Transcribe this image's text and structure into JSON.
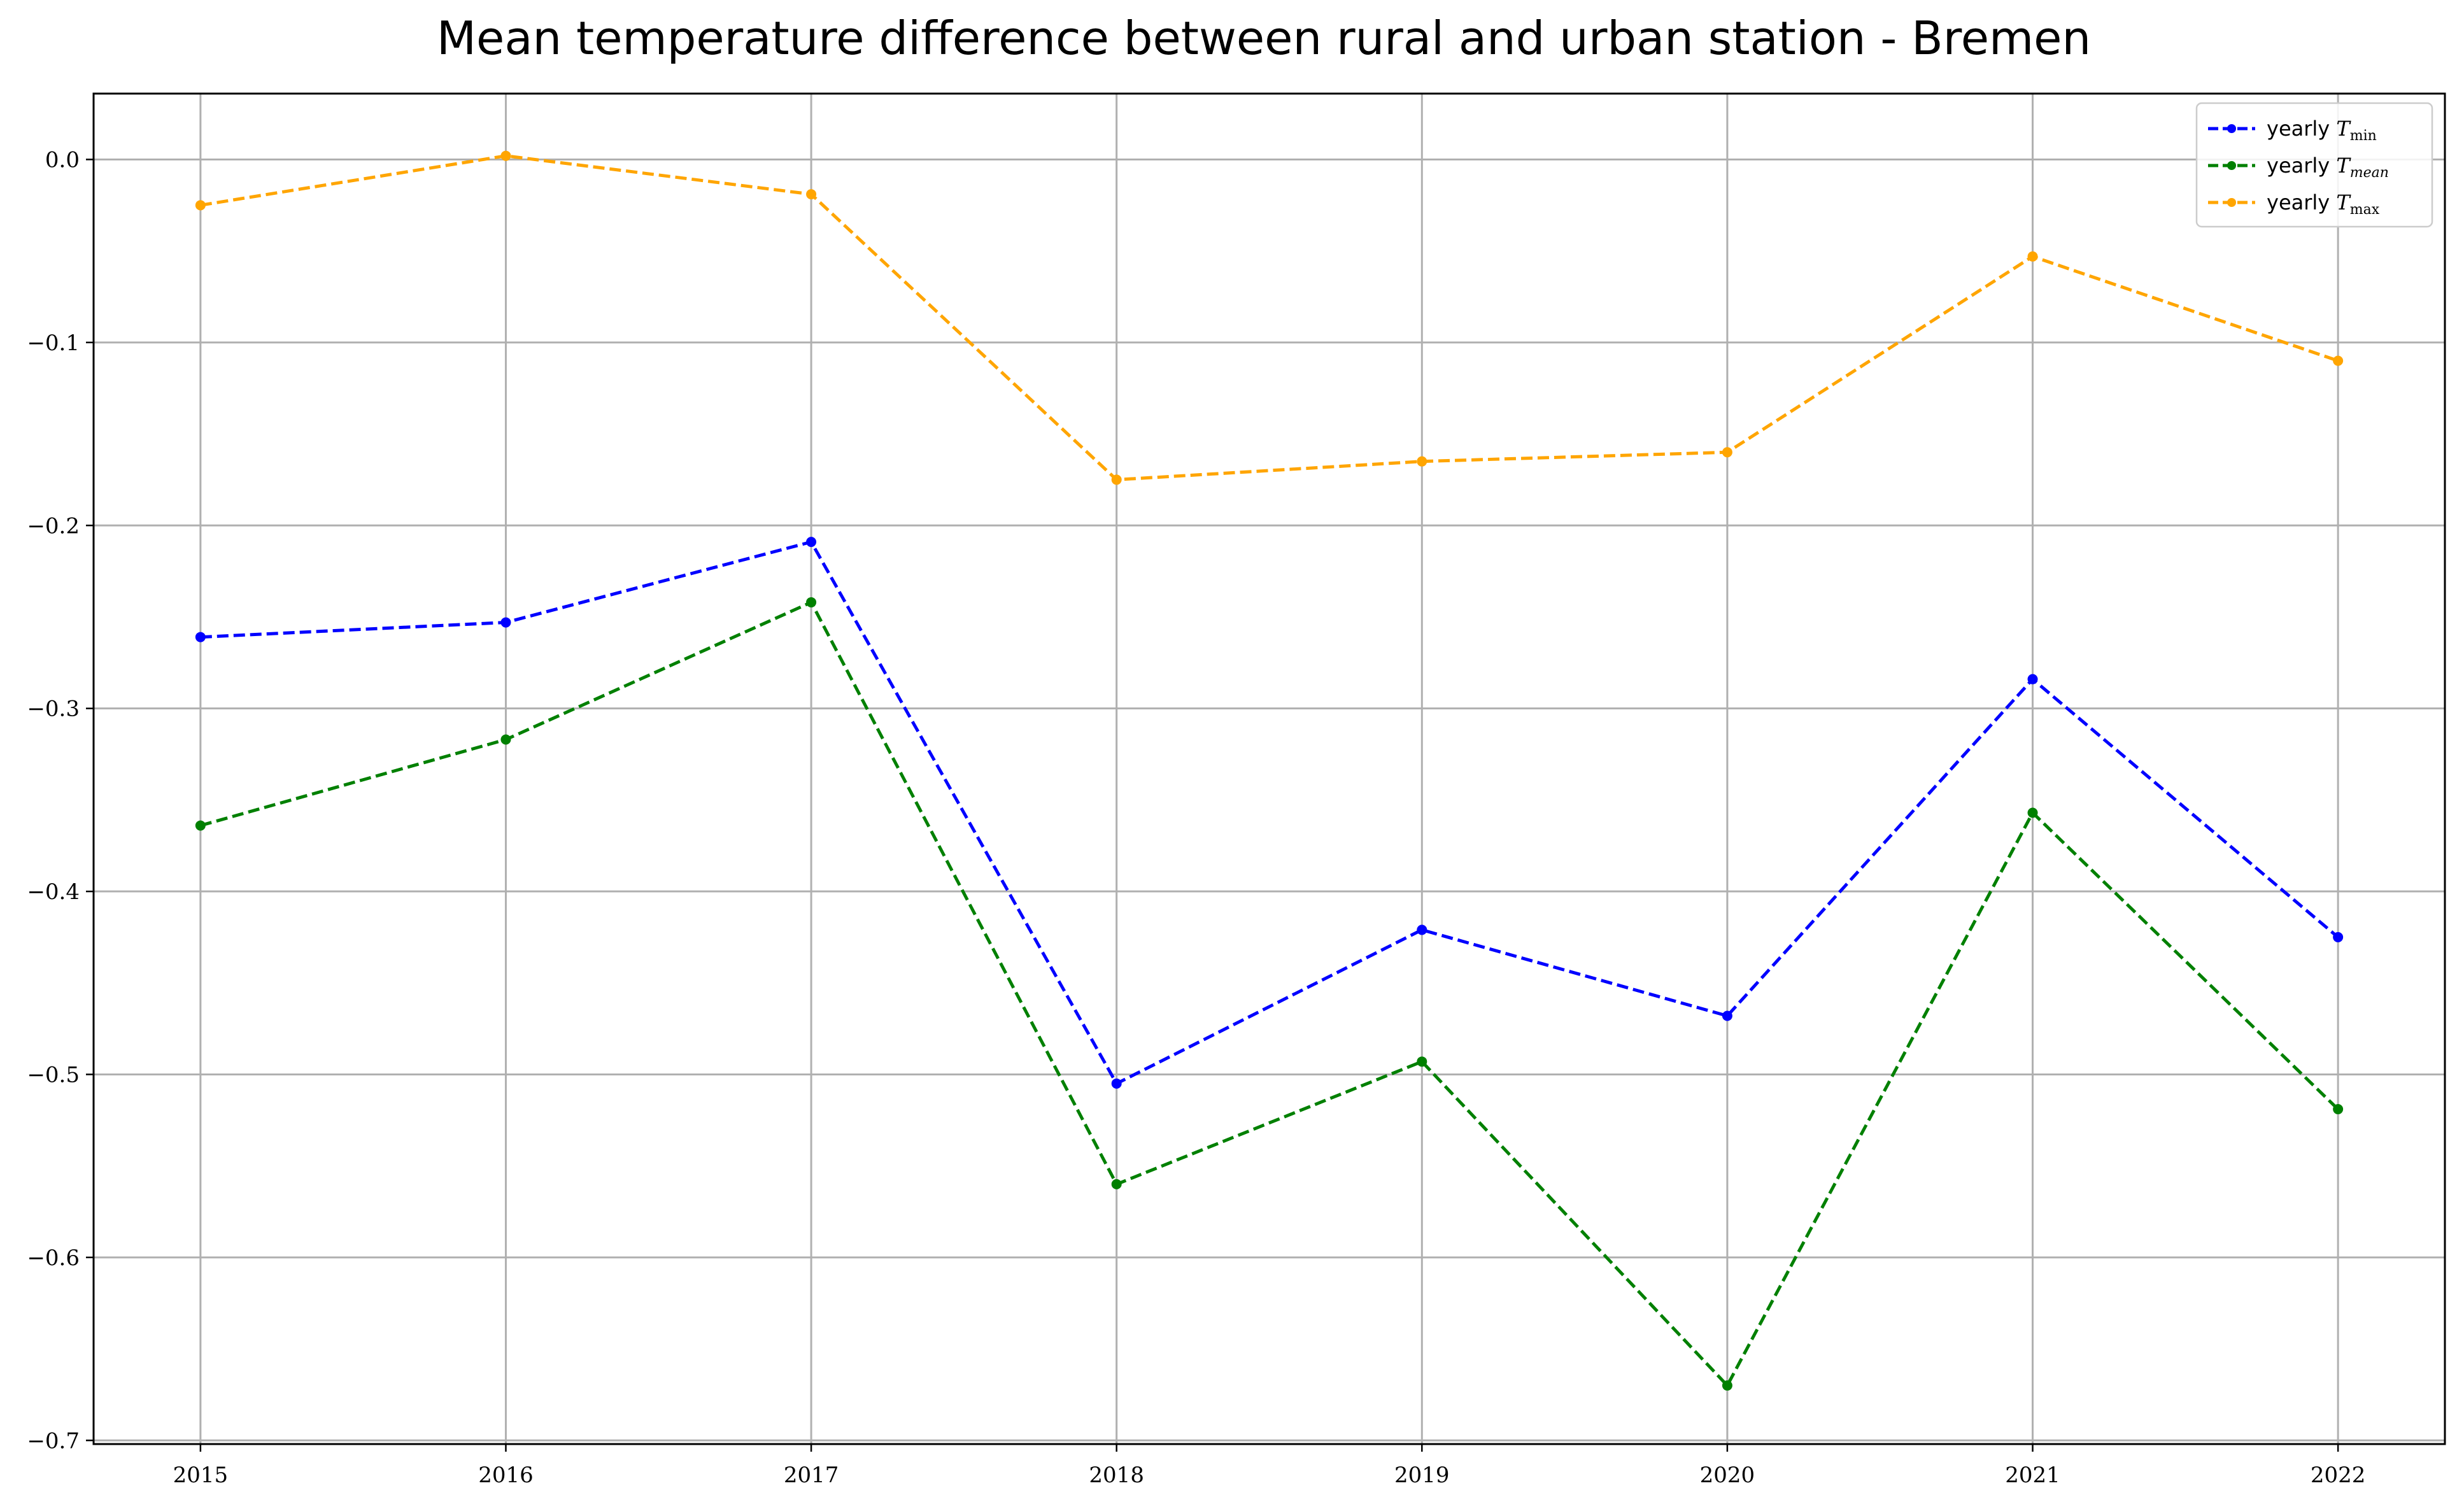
{
  "chart_data": {
    "type": "line",
    "title": "Mean temperature difference between rural and urban station - Bremen",
    "xlabel": "",
    "ylabel": "",
    "x": [
      2015,
      2016,
      2017,
      2018,
      2019,
      2020,
      2021,
      2022
    ],
    "x_tick_labels": [
      "2015",
      "2016",
      "2017",
      "2018",
      "2019",
      "2020",
      "2021",
      "2022"
    ],
    "y_ticks": [
      0.0,
      -0.1,
      -0.2,
      -0.3,
      -0.4,
      -0.5,
      -0.6,
      -0.7
    ],
    "y_tick_labels": [
      "0.0",
      "−0.1",
      "−0.2",
      "−0.3",
      "−0.4",
      "−0.5",
      "−0.6",
      "−0.7"
    ],
    "xlim": [
      2014.65,
      2022.35
    ],
    "ylim": [
      -0.702,
      0.036
    ],
    "grid": true,
    "legend_position": "top-right",
    "series": [
      {
        "id": "tmin",
        "name": "yearly T_min",
        "legend_prefix": "yearly ",
        "legend_symbol": "T",
        "legend_sub": "min",
        "legend_sub_italic": false,
        "color": "#0000ff",
        "style": "dashed",
        "marker": "dot",
        "values": [
          -0.261,
          -0.253,
          -0.209,
          -0.505,
          -0.421,
          -0.468,
          -0.284,
          -0.425
        ]
      },
      {
        "id": "tmean",
        "name": "yearly T_mean",
        "legend_prefix": "yearly ",
        "legend_symbol": "T",
        "legend_sub": "mean",
        "legend_sub_italic": true,
        "color": "#008000",
        "style": "dashed",
        "marker": "dot",
        "values": [
          -0.364,
          -0.317,
          -0.242,
          -0.56,
          -0.493,
          -0.67,
          -0.357,
          -0.519
        ]
      },
      {
        "id": "tmax",
        "name": "yearly T_max",
        "legend_prefix": "yearly ",
        "legend_symbol": "T",
        "legend_sub": "max",
        "legend_sub_italic": false,
        "color": "#ffa500",
        "style": "dashed",
        "marker": "dot",
        "values": [
          -0.025,
          0.002,
          -0.019,
          -0.175,
          -0.165,
          -0.16,
          -0.053,
          -0.11
        ]
      }
    ]
  }
}
